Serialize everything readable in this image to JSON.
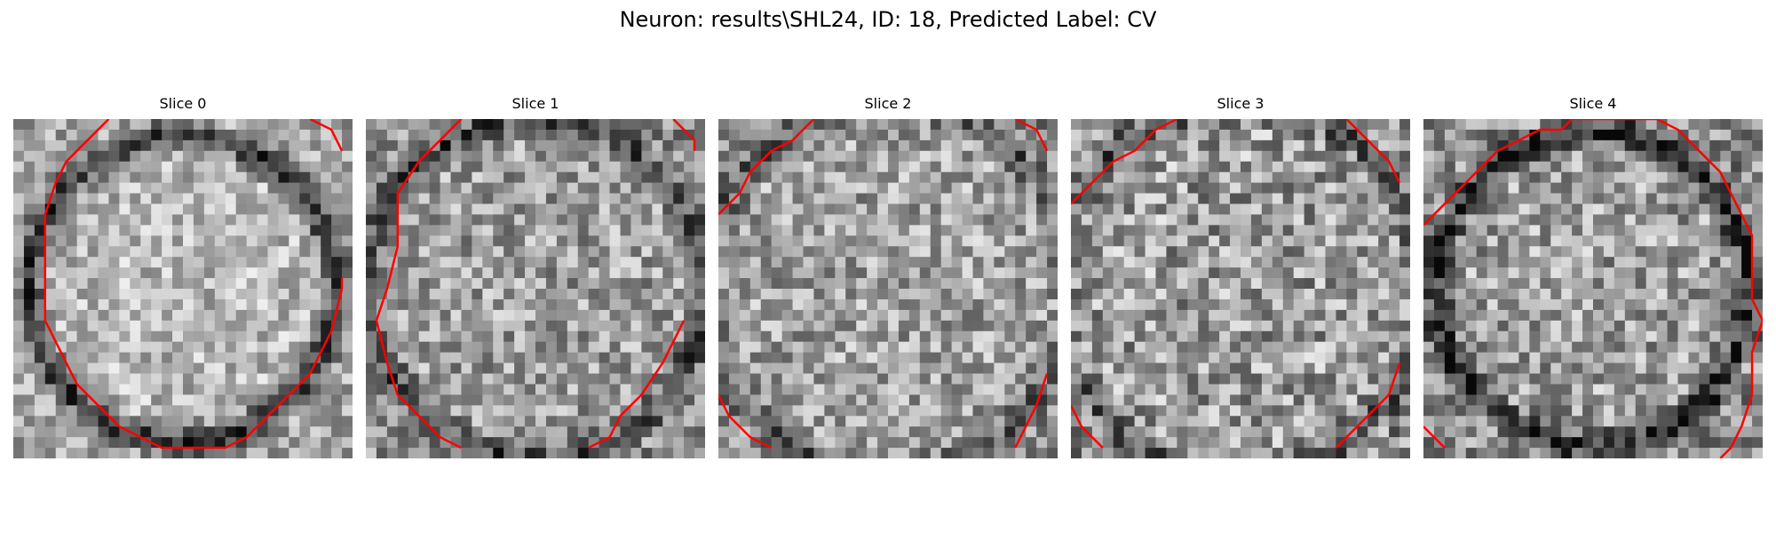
{
  "figure": {
    "title": "Neuron: results\\SHL24, ID: 18, Predicted Label: CV"
  },
  "contour_color": "#ff0000",
  "slices": [
    {
      "title": "Slice 0"
    },
    {
      "title": "Slice 1"
    },
    {
      "title": "Slice 2"
    },
    {
      "title": "Slice 3"
    },
    {
      "title": "Slice 4"
    }
  ]
}
